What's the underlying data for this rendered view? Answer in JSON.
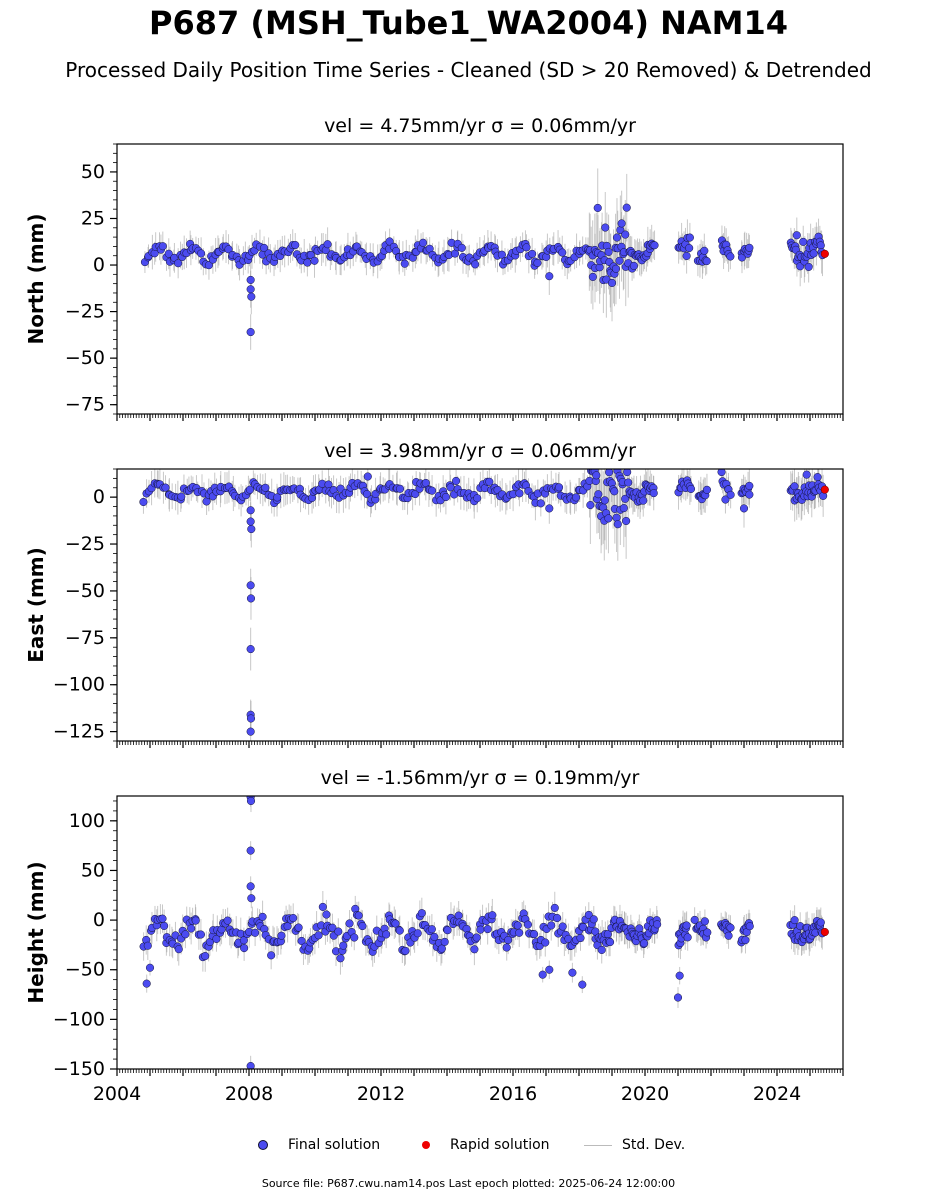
{
  "title": "P687 (MSH_Tube1_WA2004) NAM14",
  "subtitle": "Processed Daily Position Time Series - Cleaned (SD > 20 Removed) & Detrended",
  "footer": "Source file: P687.cwu.nam14.pos  Last epoch plotted: 2025-06-24 12:00:00",
  "legend": {
    "final": "Final solution",
    "rapid": "Rapid solution",
    "std": "Std. Dev."
  },
  "colors": {
    "final": "#4b4bf0",
    "rapid": "#ee0000",
    "std": "#9a9a9a",
    "marker_edge": "#111133"
  },
  "chart_data": [
    {
      "type": "scatter",
      "title": "vel = 4.75mm/yr   σ = 0.06mm/yr",
      "ylabel": "North (mm)",
      "xlim": [
        2004.0,
        2026.0
      ],
      "ylim": [
        -80,
        65
      ],
      "yticks": [
        50,
        25,
        0,
        -25,
        -50,
        -75
      ],
      "ytick_labels": [
        "50",
        "25",
        "0",
        "−25",
        "−50",
        "−75"
      ],
      "series": [
        {
          "name": "Final solution",
          "segments": [
            {
              "x0": 2004.8,
              "x1": 2018.3,
              "mean": 6,
              "amp": 3.5,
              "sd": 1.5,
              "n": 190
            },
            {
              "x0": 2018.3,
              "x1": 2019.5,
              "mean": 6,
              "amp": 3,
              "sd": 9,
              "n": 40
            },
            {
              "x0": 2019.5,
              "x1": 2020.3,
              "mean": 7,
              "amp": 3,
              "sd": 2,
              "n": 22
            },
            {
              "x0": 2021.0,
              "x1": 2021.4,
              "mean": 7,
              "amp": 3,
              "sd": 2,
              "n": 10
            },
            {
              "x0": 2021.6,
              "x1": 2021.9,
              "mean": 6,
              "amp": 3,
              "sd": 2,
              "n": 8
            },
            {
              "x0": 2022.3,
              "x1": 2022.6,
              "mean": 8,
              "amp": 3,
              "sd": 2,
              "n": 8
            },
            {
              "x0": 2022.9,
              "x1": 2023.2,
              "mean": 6,
              "amp": 3,
              "sd": 2,
              "n": 8
            },
            {
              "x0": 2024.4,
              "x1": 2025.4,
              "mean": 7,
              "amp": 3,
              "sd": 3,
              "n": 30
            }
          ],
          "outliers": [
            [
              2008.05,
              -8
            ],
            [
              2008.05,
              -13
            ],
            [
              2008.07,
              -17
            ],
            [
              2008.05,
              -36
            ],
            [
              2024.6,
              16
            ],
            [
              2017.1,
              -6
            ]
          ]
        },
        {
          "name": "Rapid solution",
          "points": [
            [
              2025.45,
              6
            ]
          ]
        }
      ]
    },
    {
      "type": "scatter",
      "title": "vel = 3.98mm/yr   σ = 0.06mm/yr",
      "ylabel": "East (mm)",
      "xlim": [
        2004.0,
        2026.0
      ],
      "ylim": [
        -130,
        15
      ],
      "yticks": [
        0,
        -25,
        -50,
        -75,
        -100,
        -125
      ],
      "ytick_labels": [
        "0",
        "−25",
        "−50",
        "−75",
        "−100",
        "−125"
      ],
      "series": [
        {
          "name": "Final solution",
          "segments": [
            {
              "x0": 2004.8,
              "x1": 2018.3,
              "mean": 3,
              "amp": 3,
              "sd": 1.5,
              "n": 190
            },
            {
              "x0": 2018.3,
              "x1": 2019.5,
              "mean": 3,
              "amp": 3,
              "sd": 9,
              "n": 40
            },
            {
              "x0": 2019.5,
              "x1": 2020.3,
              "mean": 3,
              "amp": 2,
              "sd": 2,
              "n": 22
            },
            {
              "x0": 2021.0,
              "x1": 2021.4,
              "mean": 4,
              "amp": 2,
              "sd": 2,
              "n": 10
            },
            {
              "x0": 2021.6,
              "x1": 2021.9,
              "mean": 3,
              "amp": 2,
              "sd": 2,
              "n": 8
            },
            {
              "x0": 2022.3,
              "x1": 2022.6,
              "mean": 6,
              "amp": 2,
              "sd": 2,
              "n": 8
            },
            {
              "x0": 2022.9,
              "x1": 2023.2,
              "mean": 3,
              "amp": 2,
              "sd": 2,
              "n": 8
            },
            {
              "x0": 2024.4,
              "x1": 2025.4,
              "mean": 3,
              "amp": 2,
              "sd": 3,
              "n": 30
            }
          ],
          "outliers": [
            [
              2008.05,
              -7
            ],
            [
              2008.05,
              -13
            ],
            [
              2008.07,
              -17
            ],
            [
              2008.05,
              -47
            ],
            [
              2008.06,
              -54
            ],
            [
              2008.05,
              -81
            ],
            [
              2008.05,
              -116
            ],
            [
              2008.06,
              -118
            ],
            [
              2008.05,
              -125
            ],
            [
              2011.6,
              11
            ],
            [
              2017.1,
              -6
            ],
            [
              2023.0,
              -6
            ],
            [
              2024.9,
              12
            ]
          ]
        },
        {
          "name": "Rapid solution",
          "points": [
            [
              2025.45,
              4
            ]
          ]
        }
      ]
    },
    {
      "type": "scatter",
      "title": "vel = -1.56mm/yr   σ = 0.19mm/yr",
      "ylabel": "Height (mm)",
      "xlim": [
        2004.0,
        2026.0
      ],
      "ylim": [
        -150,
        125
      ],
      "yticks": [
        100,
        50,
        0,
        -50,
        -100,
        -150
      ],
      "ytick_labels": [
        "100",
        "50",
        "0",
        "−50",
        "−100",
        "−150"
      ],
      "xticks": [
        2004,
        2008,
        2012,
        2016,
        2020,
        2024
      ],
      "xtick_labels": [
        "2004",
        "2008",
        "2012",
        "2016",
        "2020",
        "2024"
      ],
      "series": [
        {
          "name": "Final solution",
          "segments": [
            {
              "x0": 2004.8,
              "x1": 2018.3,
              "mean": -13,
              "amp": 12,
              "sd": 6,
              "n": 230
            },
            {
              "x0": 2018.3,
              "x1": 2019.5,
              "mean": -12,
              "amp": 10,
              "sd": 6,
              "n": 30
            },
            {
              "x0": 2019.5,
              "x1": 2020.4,
              "mean": -12,
              "amp": 8,
              "sd": 5,
              "n": 25
            },
            {
              "x0": 2021.0,
              "x1": 2021.3,
              "mean": -22,
              "amp": 8,
              "sd": 6,
              "n": 12
            },
            {
              "x0": 2021.5,
              "x1": 2021.9,
              "mean": -2,
              "amp": 8,
              "sd": 5,
              "n": 12
            },
            {
              "x0": 2022.3,
              "x1": 2022.6,
              "mean": -12,
              "amp": 6,
              "sd": 4,
              "n": 10
            },
            {
              "x0": 2022.9,
              "x1": 2023.2,
              "mean": -15,
              "amp": 8,
              "sd": 5,
              "n": 10
            },
            {
              "x0": 2024.4,
              "x1": 2025.4,
              "mean": -12,
              "amp": 8,
              "sd": 6,
              "n": 35
            }
          ],
          "outliers": [
            [
              2008.05,
              124
            ],
            [
              2008.06,
              120
            ],
            [
              2008.05,
              70
            ],
            [
              2008.05,
              34
            ],
            [
              2008.07,
              22
            ],
            [
              2008.05,
              -147
            ],
            [
              2004.9,
              -64
            ],
            [
              2005.0,
              -48
            ],
            [
              2017.8,
              -53
            ],
            [
              2018.1,
              -65
            ],
            [
              2021.0,
              -78
            ],
            [
              2021.05,
              -56
            ],
            [
              2017.1,
              -50
            ],
            [
              2016.9,
              -55
            ]
          ]
        },
        {
          "name": "Rapid solution",
          "points": [
            [
              2025.45,
              -12
            ]
          ]
        }
      ]
    }
  ]
}
